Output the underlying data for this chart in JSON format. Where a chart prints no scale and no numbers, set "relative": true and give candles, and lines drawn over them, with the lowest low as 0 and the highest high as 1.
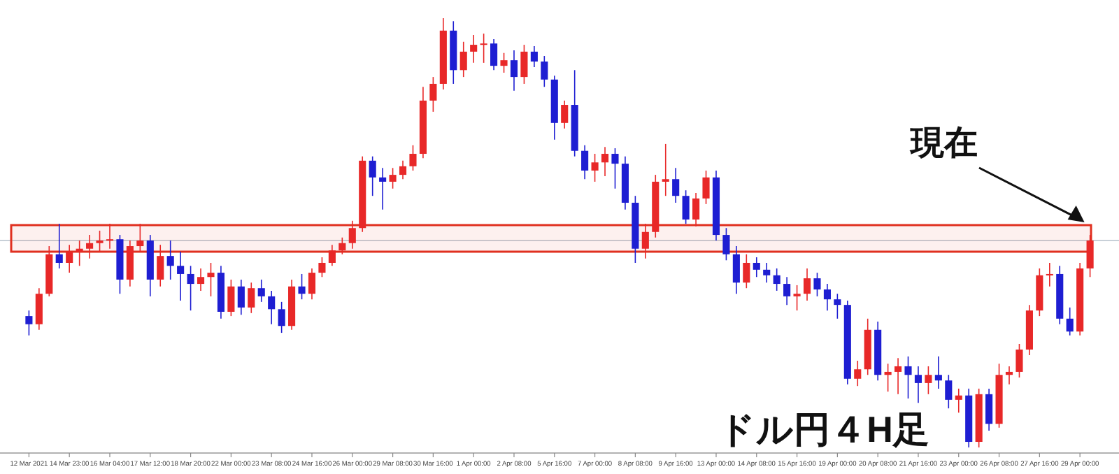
{
  "chart_data": {
    "type": "candlestick",
    "relative": true,
    "categories": [
      "12 Mar 2021",
      null,
      null,
      null,
      "14 Mar 23:00",
      null,
      null,
      null,
      "16 Mar 04:00",
      null,
      null,
      null,
      "17 Mar 12:00",
      null,
      null,
      null,
      "18 Mar 20:00",
      null,
      null,
      null,
      "22 Mar 00:00",
      null,
      null,
      null,
      "23 Mar 08:00",
      null,
      null,
      null,
      "24 Mar 16:00",
      null,
      null,
      null,
      "26 Mar 00:00",
      null,
      null,
      null,
      "29 Mar 08:00",
      null,
      null,
      null,
      "30 Mar 16:00",
      null,
      null,
      null,
      "1 Apr 00:00",
      null,
      null,
      null,
      "2 Apr 08:00",
      null,
      null,
      null,
      "5 Apr 16:00",
      null,
      null,
      null,
      "7 Apr 00:00",
      null,
      null,
      null,
      "8 Apr 08:00",
      null,
      null,
      null,
      "9 Apr 16:00",
      null,
      null,
      null,
      "13 Apr 00:00",
      null,
      null,
      null,
      "14 Apr 08:00",
      null,
      null,
      null,
      "15 Apr 16:00",
      null,
      null,
      null,
      "19 Apr 00:00",
      null,
      null,
      null,
      "20 Apr 08:00",
      null,
      null,
      null,
      "21 Apr 16:00",
      null,
      null,
      null,
      "23 Apr 00:00",
      null,
      null,
      null,
      "26 Apr 08:00",
      null,
      null,
      null,
      "27 Apr 16:00",
      null,
      null,
      null,
      "29 Apr 00:00",
      null
    ],
    "ohlc": [
      [
        0.306,
        0.319,
        0.261,
        0.287
      ],
      [
        0.287,
        0.371,
        0.274,
        0.358
      ],
      [
        0.358,
        0.469,
        0.352,
        0.45
      ],
      [
        0.45,
        0.521,
        0.417,
        0.43
      ],
      [
        0.43,
        0.472,
        0.407,
        0.456
      ],
      [
        0.456,
        0.482,
        0.423,
        0.463
      ],
      [
        0.463,
        0.495,
        0.44,
        0.476
      ],
      [
        0.476,
        0.505,
        0.456,
        0.482
      ],
      [
        0.482,
        0.521,
        0.463,
        0.485
      ],
      [
        0.485,
        0.495,
        0.358,
        0.391
      ],
      [
        0.391,
        0.482,
        0.375,
        0.469
      ],
      [
        0.469,
        0.521,
        0.456,
        0.482
      ],
      [
        0.482,
        0.495,
        0.352,
        0.391
      ],
      [
        0.391,
        0.472,
        0.375,
        0.446
      ],
      [
        0.446,
        0.482,
        0.391,
        0.423
      ],
      [
        0.423,
        0.456,
        0.342,
        0.404
      ],
      [
        0.404,
        0.423,
        0.319,
        0.381
      ],
      [
        0.381,
        0.417,
        0.365,
        0.397
      ],
      [
        0.397,
        0.43,
        0.352,
        0.407
      ],
      [
        0.407,
        0.423,
        0.3,
        0.316
      ],
      [
        0.316,
        0.391,
        0.306,
        0.375
      ],
      [
        0.375,
        0.391,
        0.309,
        0.326
      ],
      [
        0.326,
        0.384,
        0.313,
        0.371
      ],
      [
        0.371,
        0.391,
        0.339,
        0.352
      ],
      [
        0.352,
        0.365,
        0.287,
        0.322
      ],
      [
        0.322,
        0.339,
        0.267,
        0.283
      ],
      [
        0.283,
        0.391,
        0.274,
        0.375
      ],
      [
        0.375,
        0.404,
        0.345,
        0.358
      ],
      [
        0.358,
        0.417,
        0.345,
        0.407
      ],
      [
        0.407,
        0.443,
        0.397,
        0.43
      ],
      [
        0.43,
        0.472,
        0.423,
        0.459
      ],
      [
        0.459,
        0.489,
        0.45,
        0.476
      ],
      [
        0.476,
        0.528,
        0.463,
        0.511
      ],
      [
        0.511,
        0.678,
        0.502,
        0.668
      ],
      [
        0.668,
        0.678,
        0.586,
        0.629
      ],
      [
        0.629,
        0.651,
        0.554,
        0.619
      ],
      [
        0.619,
        0.651,
        0.603,
        0.635
      ],
      [
        0.635,
        0.668,
        0.625,
        0.655
      ],
      [
        0.655,
        0.704,
        0.645,
        0.684
      ],
      [
        0.684,
        0.84,
        0.674,
        0.808
      ],
      [
        0.808,
        0.863,
        0.782,
        0.847
      ],
      [
        0.847,
        1,
        0.834,
        0.971
      ],
      [
        0.971,
        0.993,
        0.847,
        0.879
      ],
      [
        0.879,
        0.945,
        0.863,
        0.922
      ],
      [
        0.922,
        0.961,
        0.896,
        0.938
      ],
      [
        0.938,
        0.964,
        0.896,
        0.941
      ],
      [
        0.941,
        0.951,
        0.879,
        0.889
      ],
      [
        0.889,
        0.919,
        0.873,
        0.902
      ],
      [
        0.902,
        0.925,
        0.831,
        0.863
      ],
      [
        0.863,
        0.938,
        0.847,
        0.922
      ],
      [
        0.922,
        0.935,
        0.886,
        0.899
      ],
      [
        0.899,
        0.912,
        0.84,
        0.857
      ],
      [
        0.857,
        0.866,
        0.717,
        0.756
      ],
      [
        0.756,
        0.808,
        0.743,
        0.798
      ],
      [
        0.798,
        0.879,
        0.678,
        0.691
      ],
      [
        0.691,
        0.704,
        0.625,
        0.645
      ],
      [
        0.645,
        0.684,
        0.619,
        0.664
      ],
      [
        0.664,
        0.7,
        0.632,
        0.684
      ],
      [
        0.684,
        0.697,
        0.603,
        0.661
      ],
      [
        0.661,
        0.678,
        0.554,
        0.57
      ],
      [
        0.57,
        0.586,
        0.43,
        0.463
      ],
      [
        0.463,
        0.521,
        0.44,
        0.502
      ],
      [
        0.502,
        0.635,
        0.489,
        0.619
      ],
      [
        0.619,
        0.707,
        0.586,
        0.625
      ],
      [
        0.625,
        0.651,
        0.57,
        0.586
      ],
      [
        0.586,
        0.599,
        0.521,
        0.531
      ],
      [
        0.531,
        0.593,
        0.515,
        0.58
      ],
      [
        0.58,
        0.645,
        0.567,
        0.629
      ],
      [
        0.629,
        0.645,
        0.482,
        0.495
      ],
      [
        0.495,
        0.511,
        0.436,
        0.45
      ],
      [
        0.45,
        0.469,
        0.358,
        0.384
      ],
      [
        0.384,
        0.45,
        0.371,
        0.43
      ],
      [
        0.43,
        0.443,
        0.397,
        0.414
      ],
      [
        0.414,
        0.43,
        0.384,
        0.401
      ],
      [
        0.401,
        0.417,
        0.365,
        0.381
      ],
      [
        0.381,
        0.397,
        0.332,
        0.352
      ],
      [
        0.352,
        0.378,
        0.319,
        0.358
      ],
      [
        0.358,
        0.417,
        0.342,
        0.394
      ],
      [
        0.394,
        0.407,
        0.352,
        0.368
      ],
      [
        0.368,
        0.381,
        0.319,
        0.345
      ],
      [
        0.345,
        0.358,
        0.3,
        0.332
      ],
      [
        0.332,
        0.342,
        0.147,
        0.16
      ],
      [
        0.16,
        0.202,
        0.143,
        0.182
      ],
      [
        0.182,
        0.3,
        0.169,
        0.274
      ],
      [
        0.274,
        0.293,
        0.156,
        0.169
      ],
      [
        0.169,
        0.195,
        0.13,
        0.176
      ],
      [
        0.176,
        0.208,
        0.124,
        0.189
      ],
      [
        0.189,
        0.212,
        0.114,
        0.169
      ],
      [
        0.169,
        0.189,
        0.104,
        0.15
      ],
      [
        0.15,
        0.189,
        0.124,
        0.169
      ],
      [
        0.169,
        0.212,
        0.137,
        0.156
      ],
      [
        0.156,
        0.169,
        0.091,
        0.111
      ],
      [
        0.111,
        0.137,
        0.081,
        0.121
      ],
      [
        0.121,
        0.137,
        0,
        0.013
      ],
      [
        0.013,
        0.137,
        0,
        0.124
      ],
      [
        0.124,
        0.137,
        0.039,
        0.055
      ],
      [
        0.055,
        0.195,
        0.046,
        0.169
      ],
      [
        0.169,
        0.189,
        0.147,
        0.176
      ],
      [
        0.176,
        0.241,
        0.163,
        0.228
      ],
      [
        0.228,
        0.332,
        0.215,
        0.319
      ],
      [
        0.319,
        0.417,
        0.306,
        0.401
      ],
      [
        0.401,
        0.43,
        0.375,
        0.404
      ],
      [
        0.404,
        0.423,
        0.287,
        0.3
      ],
      [
        0.3,
        0.326,
        0.261,
        0.27
      ],
      [
        0.27,
        0.43,
        0.261,
        0.417
      ],
      [
        0.417,
        0.495,
        0.397,
        0.482
      ]
    ],
    "colors": [
      "#1e1ed2",
      "#e82828",
      "#e82828",
      "#1e1ed2",
      "#e82828",
      "#e82828",
      "#e82828",
      "#e82828",
      "#e82828",
      "#1e1ed2",
      "#e82828",
      "#e82828",
      "#1e1ed2",
      "#e82828",
      "#1e1ed2",
      "#1e1ed2",
      "#1e1ed2",
      "#e82828",
      "#e82828",
      "#1e1ed2",
      "#e82828",
      "#1e1ed2",
      "#e82828",
      "#1e1ed2",
      "#1e1ed2",
      "#1e1ed2",
      "#e82828",
      "#1e1ed2",
      "#e82828",
      "#e82828",
      "#e82828",
      "#e82828",
      "#e82828",
      "#e82828",
      "#1e1ed2",
      "#1e1ed2",
      "#e82828",
      "#e82828",
      "#e82828",
      "#e82828",
      "#e82828",
      "#e82828",
      "#1e1ed2",
      "#e82828",
      "#e82828",
      "#e82828",
      "#1e1ed2",
      "#e82828",
      "#1e1ed2",
      "#e82828",
      "#1e1ed2",
      "#1e1ed2",
      "#1e1ed2",
      "#e82828",
      "#1e1ed2",
      "#1e1ed2",
      "#e82828",
      "#e82828",
      "#1e1ed2",
      "#1e1ed2",
      "#1e1ed2",
      "#e82828",
      "#e82828",
      "#e82828",
      "#1e1ed2",
      "#1e1ed2",
      "#e82828",
      "#e82828",
      "#1e1ed2",
      "#1e1ed2",
      "#1e1ed2",
      "#e82828",
      "#1e1ed2",
      "#1e1ed2",
      "#1e1ed2",
      "#1e1ed2",
      "#e82828",
      "#e82828",
      "#1e1ed2",
      "#1e1ed2",
      "#1e1ed2",
      "#1e1ed2",
      "#e82828",
      "#e82828",
      "#1e1ed2",
      "#e82828",
      "#e82828",
      "#1e1ed2",
      "#1e1ed2",
      "#e82828",
      "#1e1ed2",
      "#1e1ed2",
      "#e82828",
      "#1e1ed2",
      "#e82828",
      "#1e1ed2",
      "#e82828",
      "#e82828",
      "#e82828",
      "#e82828",
      "#e82828",
      "#e82828",
      "#1e1ed2",
      "#1e1ed2",
      "#e82828",
      "#e82828"
    ],
    "bands": [
      {
        "axis": "y",
        "from": 0.456,
        "to": 0.518,
        "color": "#e03020"
      }
    ],
    "ref_lines": [
      {
        "axis": "y",
        "value": 0.482,
        "color": "#c8d0d8"
      }
    ],
    "annotations": [
      "現在",
      "ドル円４H足"
    ]
  }
}
